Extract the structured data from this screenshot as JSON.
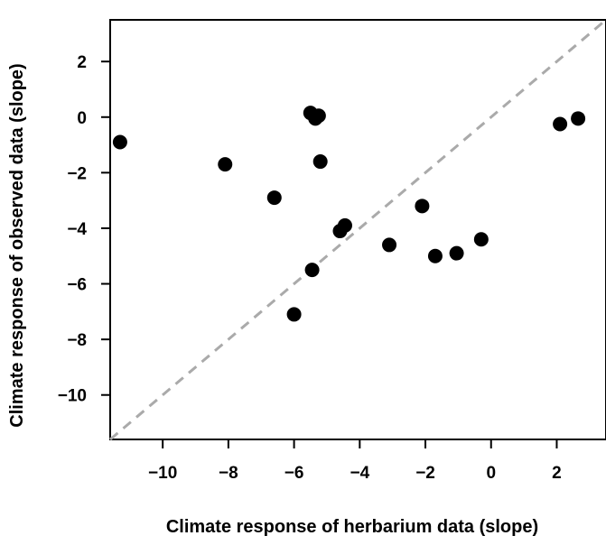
{
  "chart_data": {
    "type": "scatter",
    "xlabel": "Climate response of herbarium data (slope)",
    "ylabel": "Climate response of observed data (slope)",
    "xlim": [
      -11.6,
      3.5
    ],
    "ylim": [
      -11.6,
      3.5
    ],
    "xticks": [
      -10,
      -8,
      -6,
      -4,
      -2,
      0,
      2
    ],
    "yticks": [
      -10,
      -8,
      -6,
      -4,
      -2,
      0,
      2
    ],
    "tick_labels_x": [
      "−10",
      "−8",
      "−6",
      "−4",
      "−2",
      "0",
      "2"
    ],
    "tick_labels_y": [
      "−10",
      "−8",
      "−6",
      "−4",
      "−2",
      "0",
      "2"
    ],
    "reference_line": "y = x (dashed, gray)",
    "point_color": "#000000",
    "reference_line_color": "#aaaaaa",
    "grid": false,
    "points": [
      {
        "x": -11.3,
        "y": -0.9
      },
      {
        "x": -8.1,
        "y": -1.7
      },
      {
        "x": -6.6,
        "y": -2.9
      },
      {
        "x": -6.0,
        "y": -7.1
      },
      {
        "x": -5.5,
        "y": 0.15
      },
      {
        "x": -5.35,
        "y": -0.05
      },
      {
        "x": -5.25,
        "y": 0.05
      },
      {
        "x": -5.2,
        "y": -1.6
      },
      {
        "x": -5.45,
        "y": -5.5
      },
      {
        "x": -4.6,
        "y": -4.1
      },
      {
        "x": -4.45,
        "y": -3.9
      },
      {
        "x": -3.1,
        "y": -4.6
      },
      {
        "x": -2.1,
        "y": -3.2
      },
      {
        "x": -1.7,
        "y": -5.0
      },
      {
        "x": -1.05,
        "y": -4.9
      },
      {
        "x": -0.3,
        "y": -4.4
      },
      {
        "x": 2.1,
        "y": -0.25
      },
      {
        "x": 2.65,
        "y": -0.05
      }
    ]
  }
}
